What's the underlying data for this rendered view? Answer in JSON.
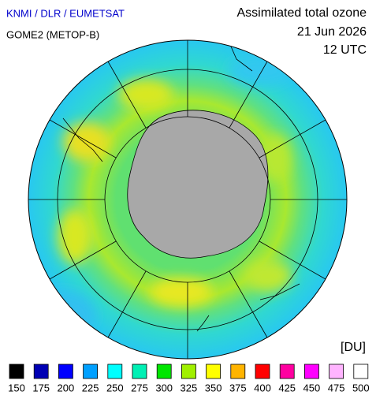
{
  "header": {
    "source": "KNMI / DLR / EUMETSAT",
    "instrument": "GOME2 (METOP-B)",
    "title": "Assimilated total ozone",
    "date": "21 Jun 2026",
    "time": "12 UTC"
  },
  "legend": {
    "unit": "[DU]",
    "items": [
      {
        "value": 150,
        "color": "#000000"
      },
      {
        "value": 175,
        "color": "#0000b4"
      },
      {
        "value": 200,
        "color": "#0000ff"
      },
      {
        "value": 225,
        "color": "#00a0ff"
      },
      {
        "value": 250,
        "color": "#00ffff"
      },
      {
        "value": 275,
        "color": "#00f0b4"
      },
      {
        "value": 300,
        "color": "#00e600"
      },
      {
        "value": 325,
        "color": "#a0f000"
      },
      {
        "value": 350,
        "color": "#ffff00"
      },
      {
        "value": 375,
        "color": "#ffb400"
      },
      {
        "value": 400,
        "color": "#ff0000"
      },
      {
        "value": 425,
        "color": "#ff00a0"
      },
      {
        "value": 450,
        "color": "#ff00ff"
      },
      {
        "value": 475,
        "color": "#ffb4ff"
      },
      {
        "value": 500,
        "color": "#ffffff"
      }
    ]
  }
}
